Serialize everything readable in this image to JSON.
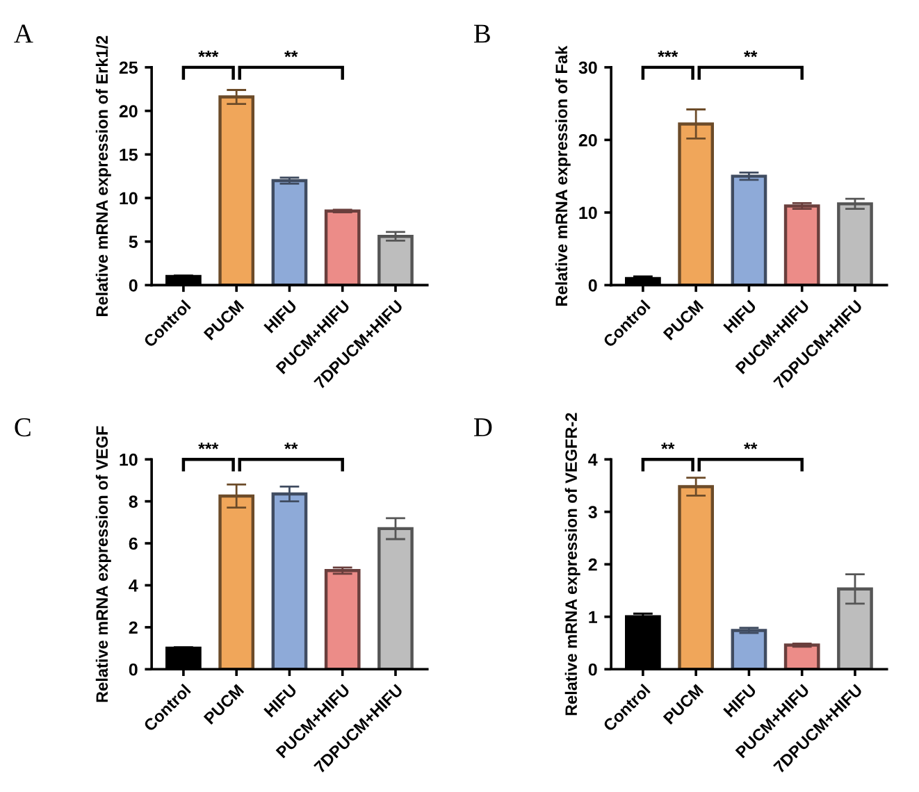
{
  "chart_data": [
    {
      "type": "bar",
      "title": "A",
      "ylabel": "Relative mRNA expression of Erk1/2",
      "categories": [
        "Control",
        "PUCM",
        "HIFU",
        "PUCM+HIFU",
        "7DPUCM+HIFU"
      ],
      "values": [
        1.0,
        21.6,
        12.0,
        8.5,
        5.6
      ],
      "errors": [
        0.1,
        0.8,
        0.35,
        0.15,
        0.5
      ],
      "colors": [
        "#000000",
        "#f0a65a",
        "#8eaad8",
        "#ec8c88",
        "#bdbdbd"
      ],
      "ylim": [
        0,
        25
      ],
      "yticks": [
        0,
        5,
        10,
        15,
        20,
        25
      ],
      "annotations": [
        "***",
        "**"
      ],
      "grid": false
    },
    {
      "type": "bar",
      "title": "B",
      "ylabel": "Relative mRNA expression of Fak",
      "categories": [
        "Control",
        "PUCM",
        "HIFU",
        "PUCM+HIFU",
        "7DPUCM+HIFU"
      ],
      "values": [
        0.9,
        22.2,
        15.0,
        10.9,
        11.2
      ],
      "errors": [
        0.3,
        2.0,
        0.5,
        0.4,
        0.7
      ],
      "colors": [
        "#000000",
        "#f0a65a",
        "#8eaad8",
        "#ec8c88",
        "#bdbdbd"
      ],
      "ylim": [
        0,
        30
      ],
      "yticks": [
        0,
        10,
        20,
        30
      ],
      "annotations": [
        "***",
        "**"
      ],
      "grid": false
    },
    {
      "type": "bar",
      "title": "C",
      "ylabel": "Relative mRNA expression of VEGF",
      "categories": [
        "Control",
        "PUCM",
        "HIFU",
        "PUCM+HIFU",
        "7DPUCM+HIFU"
      ],
      "values": [
        1.0,
        8.25,
        8.35,
        4.7,
        6.7
      ],
      "errors": [
        0.05,
        0.55,
        0.35,
        0.15,
        0.5
      ],
      "colors": [
        "#000000",
        "#f0a65a",
        "#8eaad8",
        "#ec8c88",
        "#bdbdbd"
      ],
      "ylim": [
        0,
        10
      ],
      "yticks": [
        0,
        2,
        4,
        6,
        8,
        10
      ],
      "annotations": [
        "***",
        "**"
      ],
      "grid": false
    },
    {
      "type": "bar",
      "title": "D",
      "ylabel": "Relative mRNA expression of VEGFR-2",
      "categories": [
        "Control",
        "PUCM",
        "HIFU",
        "PUCM+HIFU",
        "7DPUCM+HIFU"
      ],
      "values": [
        1.0,
        3.48,
        0.74,
        0.46,
        1.53
      ],
      "errors": [
        0.06,
        0.17,
        0.05,
        0.03,
        0.28
      ],
      "colors": [
        "#000000",
        "#f0a65a",
        "#8eaad8",
        "#ec8c88",
        "#bdbdbd"
      ],
      "ylim": [
        0,
        4
      ],
      "yticks": [
        0,
        1,
        2,
        3,
        4
      ],
      "annotations": [
        "**",
        "**"
      ],
      "grid": false
    }
  ]
}
